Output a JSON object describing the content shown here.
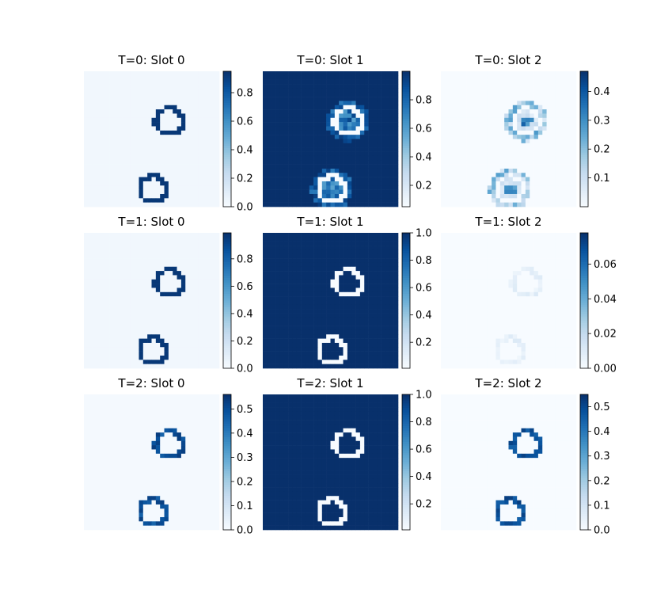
{
  "chart_data": [
    {
      "type": "heatmap",
      "title": "T=0: Slot 0",
      "colormap": "Blues",
      "vmin": 0,
      "vmax": 0.95,
      "colorbar_ticks": [
        0.0,
        0.2,
        0.4,
        0.6,
        0.8
      ],
      "colorbar_tick_labels": [
        "0.0",
        "0.2",
        "0.4",
        "0.6",
        "0.8"
      ],
      "objects": [
        {
          "cx": 0.63,
          "cy": 0.37,
          "style": "outline"
        },
        {
          "cx": 0.51,
          "cy": 0.87,
          "style": "outline"
        }
      ],
      "background": 0.03
    },
    {
      "type": "heatmap",
      "title": "T=0: Slot 1",
      "colormap": "Blues",
      "vmin": 0.05,
      "vmax": 1.0,
      "colorbar_ticks": [
        0.2,
        0.4,
        0.6,
        0.8
      ],
      "colorbar_tick_labels": [
        "0.2",
        "0.4",
        "0.6",
        "0.8"
      ],
      "objects": [
        {
          "cx": 0.63,
          "cy": 0.37,
          "style": "ring-white"
        },
        {
          "cx": 0.51,
          "cy": 0.87,
          "style": "ring-white"
        }
      ],
      "background": 1.0
    },
    {
      "type": "heatmap",
      "title": "T=0: Slot 2",
      "colormap": "Blues",
      "vmin": 0.0,
      "vmax": 0.47,
      "colorbar_ticks": [
        0.1,
        0.2,
        0.3,
        0.4
      ],
      "colorbar_tick_labels": [
        "0.1",
        "0.2",
        "0.3",
        "0.4"
      ],
      "objects": [
        {
          "cx": 0.63,
          "cy": 0.37,
          "style": "ring-faint"
        },
        {
          "cx": 0.51,
          "cy": 0.87,
          "style": "ring-faint"
        }
      ],
      "background": 0.0
    },
    {
      "type": "heatmap",
      "title": "T=1: Slot 0",
      "colormap": "Blues",
      "vmin": 0,
      "vmax": 0.99,
      "colorbar_ticks": [
        0.0,
        0.2,
        0.4,
        0.6,
        0.8
      ],
      "colorbar_tick_labels": [
        "0.0",
        "0.2",
        "0.4",
        "0.6",
        "0.8"
      ],
      "objects": [
        {
          "cx": 0.63,
          "cy": 0.37,
          "style": "outline"
        },
        {
          "cx": 0.51,
          "cy": 0.87,
          "style": "outline"
        }
      ],
      "background": 0.03
    },
    {
      "type": "heatmap",
      "title": "T=1: Slot 1",
      "colormap": "Blues",
      "vmin": 0.01,
      "vmax": 1.0,
      "colorbar_ticks": [
        0.2,
        0.4,
        0.6,
        0.8,
        1.0
      ],
      "colorbar_tick_labels": [
        "0.2",
        "0.4",
        "0.6",
        "0.8",
        "1.0"
      ],
      "objects": [
        {
          "cx": 0.63,
          "cy": 0.37,
          "style": "outline-white"
        },
        {
          "cx": 0.51,
          "cy": 0.87,
          "style": "outline-white"
        }
      ],
      "background": 1.0
    },
    {
      "type": "heatmap",
      "title": "T=1: Slot 2",
      "colormap": "Blues",
      "vmin": 0.0,
      "vmax": 0.078,
      "colorbar_ticks": [
        0.0,
        0.02,
        0.04,
        0.06
      ],
      "colorbar_tick_labels": [
        "0.00",
        "0.02",
        "0.04",
        "0.06"
      ],
      "objects": [
        {
          "cx": 0.63,
          "cy": 0.37,
          "style": "outline-faint"
        },
        {
          "cx": 0.51,
          "cy": 0.87,
          "style": "outline-faint"
        }
      ],
      "background": 0.0
    },
    {
      "type": "heatmap",
      "title": "T=2: Slot 0",
      "colormap": "Blues",
      "vmin": 0,
      "vmax": 0.56,
      "colorbar_ticks": [
        0.0,
        0.1,
        0.2,
        0.3,
        0.4,
        0.5
      ],
      "colorbar_tick_labels": [
        "0.0",
        "0.1",
        "0.2",
        "0.3",
        "0.4",
        "0.5"
      ],
      "objects": [
        {
          "cx": 0.63,
          "cy": 0.37,
          "style": "outline-mid"
        },
        {
          "cx": 0.51,
          "cy": 0.87,
          "style": "outline-mid"
        }
      ],
      "background": 0.015
    },
    {
      "type": "heatmap",
      "title": "T=2: Slot 1",
      "colormap": "Blues",
      "vmin": 0.01,
      "vmax": 1.0,
      "colorbar_ticks": [
        0.2,
        0.4,
        0.6,
        0.8,
        1.0
      ],
      "colorbar_tick_labels": [
        "0.2",
        "0.4",
        "0.6",
        "0.8",
        "1.0"
      ],
      "objects": [
        {
          "cx": 0.63,
          "cy": 0.37,
          "style": "outline-white"
        },
        {
          "cx": 0.51,
          "cy": 0.87,
          "style": "outline-white"
        }
      ],
      "background": 1.0
    },
    {
      "type": "heatmap",
      "title": "T=2: Slot 2",
      "colormap": "Blues",
      "vmin": 0.0,
      "vmax": 0.55,
      "colorbar_ticks": [
        0.0,
        0.1,
        0.2,
        0.3,
        0.4,
        0.5
      ],
      "colorbar_tick_labels": [
        "0.0",
        "0.1",
        "0.2",
        "0.3",
        "0.4",
        "0.5"
      ],
      "objects": [
        {
          "cx": 0.63,
          "cy": 0.37,
          "style": "outline-mid"
        },
        {
          "cx": 0.51,
          "cy": 0.87,
          "style": "outline-mid"
        }
      ],
      "background": 0.0
    }
  ]
}
